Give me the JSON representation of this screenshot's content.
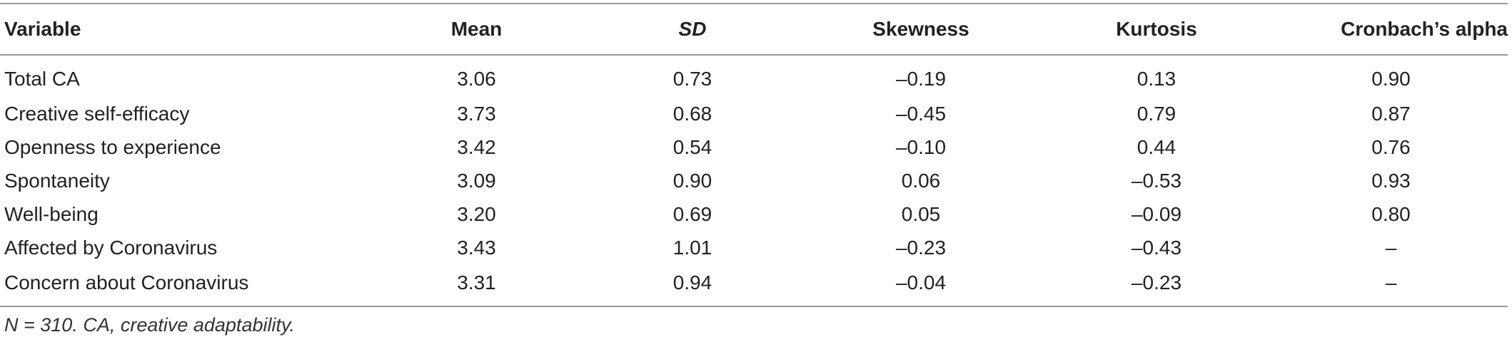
{
  "table": {
    "headers": [
      "Variable",
      "Mean",
      "SD",
      "Skewness",
      "Kurtosis",
      "Cronbach’s alpha"
    ],
    "rows": [
      [
        "Total CA",
        "3.06",
        "0.73",
        "–0.19",
        "0.13",
        "0.90"
      ],
      [
        "Creative self-efficacy",
        "3.73",
        "0.68",
        "–0.45",
        "0.79",
        "0.87"
      ],
      [
        "Openness to experience",
        "3.42",
        "0.54",
        "–0.10",
        "0.44",
        "0.76"
      ],
      [
        "Spontaneity",
        "3.09",
        "0.90",
        "0.06",
        "–0.53",
        "0.93"
      ],
      [
        "Well-being",
        "3.20",
        "0.69",
        "0.05",
        "–0.09",
        "0.80"
      ],
      [
        "Affected by Coronavirus",
        "3.43",
        "1.01",
        "–0.23",
        "–0.43",
        "–"
      ],
      [
        "Concern about Coronavirus",
        "3.31",
        "0.94",
        "–0.04",
        "–0.23",
        "–"
      ]
    ]
  },
  "footnote": "N = 310. CA, creative adaptability."
}
